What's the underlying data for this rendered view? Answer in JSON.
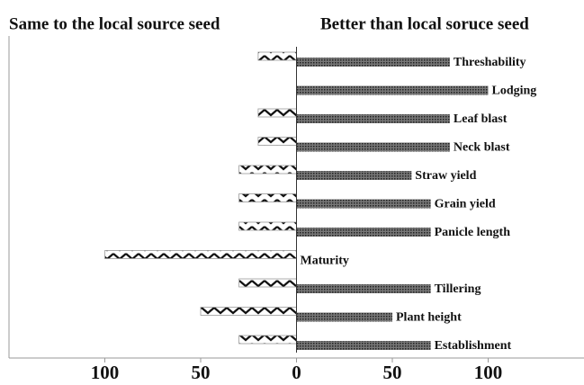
{
  "chart_data": {
    "type": "diverging-bar",
    "categories": [
      "Threshability",
      "Lodging",
      "Leaf blast",
      "Neck blast",
      "Straw yield",
      "Grain yield",
      "Panicle length",
      "Maturity",
      "Tillering",
      "Plant height",
      "Establishment"
    ],
    "series": [
      {
        "name": "Same to the local source seed",
        "color": "#ffffff",
        "values": [
          -20,
          0,
          -20,
          -20,
          -30,
          -30,
          -30,
          -100,
          -30,
          -50,
          -30
        ]
      },
      {
        "name": "Better than local soruce seed",
        "color": "#777777",
        "values": [
          80,
          100,
          80,
          80,
          60,
          70,
          70,
          0,
          70,
          50,
          70
        ]
      }
    ],
    "xlim": [
      -150,
      150
    ],
    "xticks": [
      {
        "value": -100,
        "label": "100"
      },
      {
        "value": -50,
        "label": "50"
      },
      0,
      50,
      100
    ]
  }
}
